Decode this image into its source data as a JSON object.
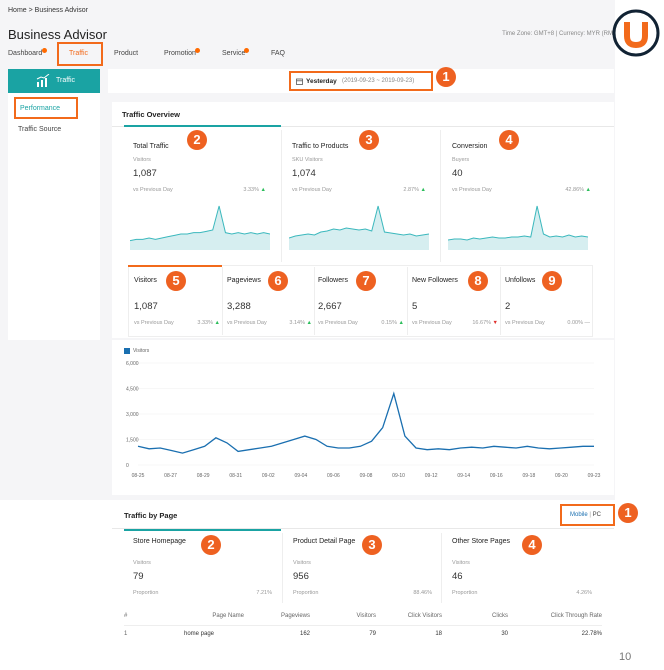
{
  "breadcrumb": "Home  >  Business Advisor",
  "app_title": "Business Advisor",
  "meta": "Time Zone: GMT+8 | Currency: MYR (RM)",
  "nav": {
    "tabs": [
      "Dashboard",
      "Traffic",
      "Product",
      "Promotion",
      "Service",
      "FAQ"
    ]
  },
  "sidebar": {
    "header": "Traffic",
    "items": [
      "Performance",
      "Traffic Source"
    ]
  },
  "date": {
    "label": "Yesterday",
    "range": "(2019-09-23 ~ 2019-09-23)"
  },
  "overview": {
    "title": "Traffic Overview",
    "cards": [
      {
        "title": "Total Traffic",
        "sub": "Visitors",
        "value": "1,087",
        "cmp": "vs Previous Day",
        "pct": "3.33%",
        "num": "2"
      },
      {
        "title": "Traffic to Products",
        "sub": "SKU Visitors",
        "value": "1,074",
        "cmp": "vs Previous Day",
        "pct": "2.87%",
        "num": "3"
      },
      {
        "title": "Conversion",
        "sub": "Buyers",
        "value": "40",
        "cmp": "vs Previous Day",
        "pct": "42.86%",
        "num": "4"
      }
    ],
    "metrics": [
      {
        "label": "Visitors",
        "value": "1,087",
        "cmp": "vs Previous Day",
        "pct": "3.33%",
        "trend": "up",
        "num": "5"
      },
      {
        "label": "Pageviews",
        "value": "3,288",
        "cmp": "vs Previous Day",
        "pct": "3.14%",
        "trend": "up",
        "num": "6"
      },
      {
        "label": "Followers",
        "value": "2,667",
        "cmp": "vs Previous Day",
        "pct": "0.15%",
        "trend": "up",
        "num": "7"
      },
      {
        "label": "New Followers",
        "value": "5",
        "cmp": "vs Previous Day",
        "pct": "16.67%",
        "trend": "down",
        "num": "8"
      },
      {
        "label": "Unfollows",
        "value": "2",
        "cmp": "vs Previous Day",
        "pct": "0.00%",
        "trend": "flat",
        "num": "9"
      }
    ]
  },
  "chart_data": {
    "type": "line",
    "legend": "Visitors",
    "ylim": [
      0,
      6000
    ],
    "yticks": [
      "6,000",
      "4,500",
      "3,000",
      "1,500",
      "0"
    ],
    "xticks": [
      "08-25",
      "08-27",
      "08-29",
      "08-31",
      "09-02",
      "09-04",
      "09-06",
      "09-08",
      "09-10",
      "09-12",
      "09-14",
      "09-16",
      "09-18",
      "09-20",
      "09-23"
    ],
    "series": [
      {
        "name": "Visitors",
        "color": "#1a6fb0",
        "values": [
          1100,
          950,
          1000,
          850,
          700,
          900,
          1100,
          1600,
          1300,
          800,
          900,
          1000,
          1100,
          1300,
          1500,
          1700,
          1500,
          1100,
          1000,
          1000,
          1100,
          1400,
          2200,
          4200,
          1700,
          1000,
          900,
          950,
          900,
          1000,
          1050,
          1000,
          1100,
          1050,
          1000,
          1100,
          1000,
          950,
          1000,
          1050,
          1100,
          1100
        ]
      }
    ]
  },
  "sparklines": [
    [
      4,
      5,
      5,
      6,
      5,
      6,
      7,
      8,
      9,
      9,
      10,
      10,
      11,
      12,
      30,
      10,
      9,
      10,
      9,
      10,
      9,
      10,
      9
    ],
    [
      8,
      10,
      11,
      12,
      11,
      14,
      15,
      17,
      16,
      18,
      17,
      16,
      17,
      15,
      40,
      14,
      13,
      12,
      11,
      12,
      10,
      11,
      12
    ],
    [
      6,
      7,
      7,
      6,
      8,
      7,
      8,
      9,
      8,
      8,
      9,
      9,
      10,
      9,
      40,
      12,
      9,
      10,
      9,
      11,
      9,
      10,
      9
    ]
  ],
  "traffic_by_page": {
    "title": "Traffic by Page",
    "toggle": {
      "mobile": "Mobile",
      "sep": "|",
      "pc": "PC"
    },
    "toggle_num": "1",
    "cards": [
      {
        "title": "Store Homepage",
        "sub": "Visitors",
        "value": "79",
        "prop_label": "Proportion",
        "prop": "7.21%",
        "num": "2"
      },
      {
        "title": "Product Detail Page",
        "sub": "Visitors",
        "value": "956",
        "prop_label": "Proportion",
        "prop": "88.46%",
        "num": "3"
      },
      {
        "title": "Other Store Pages",
        "sub": "Visitors",
        "value": "46",
        "prop_label": "Proportion",
        "prop": "4.26%",
        "num": "4"
      }
    ],
    "table": {
      "headers": [
        "#",
        "Page Name",
        "Pageviews",
        "Visitors",
        "Click Visitors",
        "Clicks",
        "Click Through Rate"
      ],
      "rows": [
        [
          "1",
          "home page",
          "162",
          "79",
          "18",
          "30",
          "22.78%"
        ]
      ]
    }
  },
  "date_num": "1",
  "page_number": "10"
}
